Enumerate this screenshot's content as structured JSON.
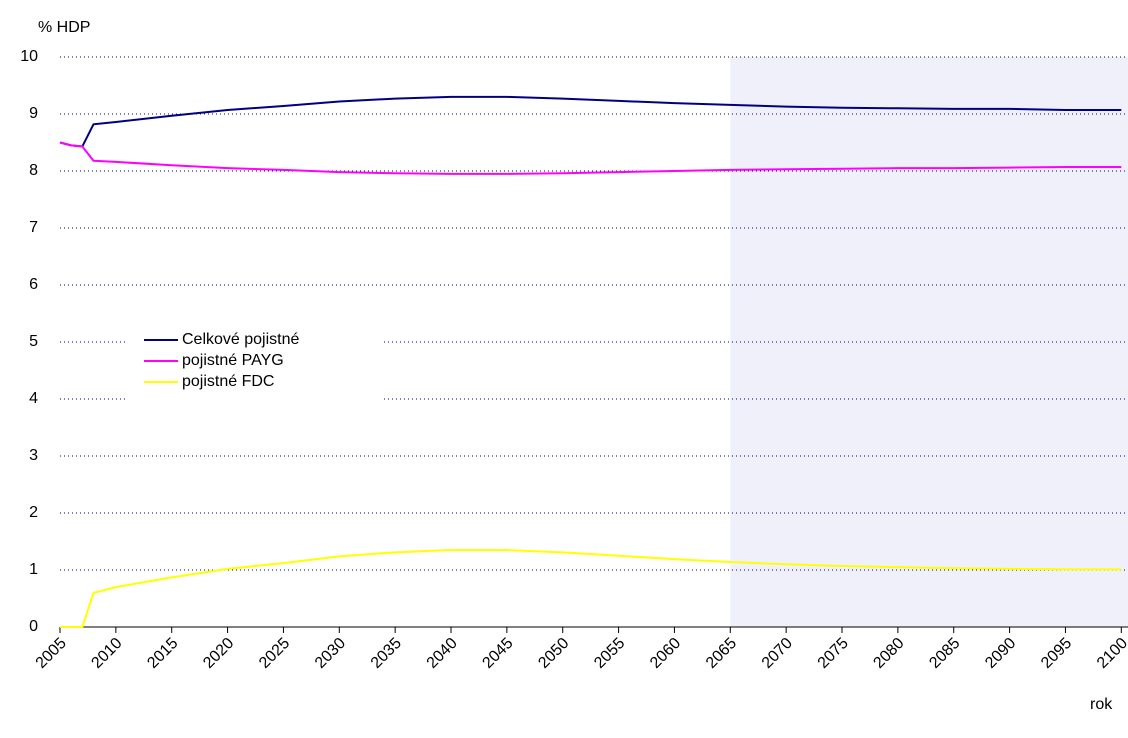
{
  "chart_data": {
    "type": "line",
    "y_label": "% HDP",
    "x_label": "rok",
    "x": [
      2005,
      2006,
      2007,
      2008,
      2010,
      2015,
      2020,
      2025,
      2030,
      2035,
      2040,
      2045,
      2050,
      2055,
      2060,
      2065,
      2070,
      2075,
      2080,
      2085,
      2090,
      2095,
      2100
    ],
    "series": [
      {
        "name": "Celkové pojistné",
        "color": "#000080",
        "values": [
          8.5,
          8.45,
          8.43,
          8.82,
          8.86,
          8.97,
          9.07,
          9.14,
          9.22,
          9.27,
          9.3,
          9.3,
          9.27,
          9.23,
          9.19,
          9.16,
          9.13,
          9.11,
          9.1,
          9.09,
          9.09,
          9.07,
          9.07
        ]
      },
      {
        "name": "pojistné PAYG",
        "color": "#ff00ff",
        "values": [
          8.5,
          8.45,
          8.43,
          8.18,
          8.16,
          8.1,
          8.05,
          8.02,
          7.98,
          7.96,
          7.95,
          7.95,
          7.96,
          7.98,
          8.0,
          8.02,
          8.03,
          8.04,
          8.05,
          8.05,
          8.06,
          8.07,
          8.07
        ]
      },
      {
        "name": "pojistné FDC",
        "color": "#ffff00",
        "values": [
          0,
          0,
          0,
          0.6,
          0.7,
          0.87,
          1.02,
          1.12,
          1.24,
          1.31,
          1.35,
          1.35,
          1.31,
          1.25,
          1.19,
          1.14,
          1.1,
          1.07,
          1.05,
          1.03,
          1.02,
          1.01,
          1.01
        ]
      }
    ],
    "xlim": [
      2005,
      2100.6
    ],
    "xticks": [
      2005,
      2010,
      2015,
      2020,
      2025,
      2030,
      2035,
      2040,
      2045,
      2050,
      2055,
      2060,
      2065,
      2070,
      2075,
      2080,
      2085,
      2090,
      2095,
      2100
    ],
    "ylim": [
      0,
      10
    ],
    "yticks": [
      0,
      1,
      2,
      3,
      4,
      5,
      6,
      7,
      8,
      9,
      10
    ],
    "grid": true,
    "shade_from": 2065,
    "shade_color": "#f0f0fa",
    "legend": "left"
  }
}
